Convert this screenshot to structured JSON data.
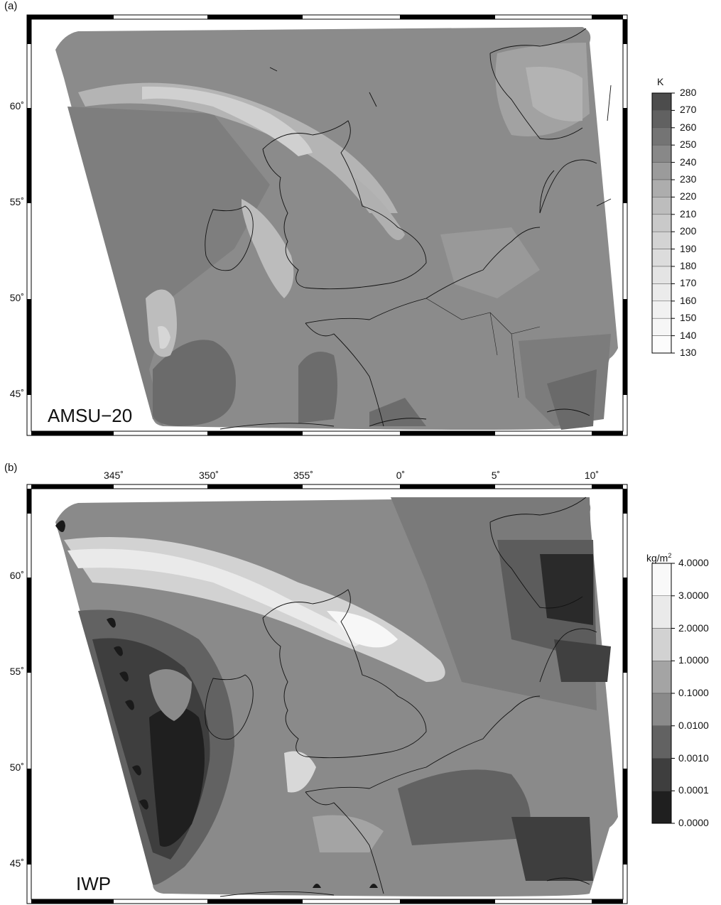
{
  "panels": [
    {
      "id": "a",
      "label": "(a)",
      "title": "AMSU−20",
      "lat_labels": [
        "60˚",
        "55˚",
        "50˚",
        "45˚"
      ],
      "lon_labels": [],
      "colorbar": {
        "unit": "K",
        "ticks": [
          "280",
          "270",
          "260",
          "250",
          "240",
          "230",
          "220",
          "210",
          "200",
          "190",
          "180",
          "170",
          "160",
          "150",
          "140",
          "130"
        ],
        "colors": [
          "#4c4c4c",
          "#616161",
          "#747474",
          "#888888",
          "#9b9b9b",
          "#adadad",
          "#bdbdbd",
          "#c9c9c9",
          "#d3d3d3",
          "#dcdcdc",
          "#e4e4e4",
          "#ebebeb",
          "#f1f1f1",
          "#f6f6f6",
          "#fcfcfc"
        ]
      }
    },
    {
      "id": "b",
      "label": "(b)",
      "title": "IWP",
      "lat_labels": [
        "60˚",
        "55˚",
        "50˚",
        "45˚"
      ],
      "lon_labels": [
        "345˚",
        "350˚",
        "355˚",
        "0˚",
        "5˚",
        "10˚"
      ],
      "colorbar": {
        "unit_base": "kg/m",
        "unit_exp": "2",
        "ticks": [
          "4.0000",
          "3.0000",
          "2.0000",
          "1.0000",
          "0.1000",
          "0.0100",
          "0.0010",
          "0.0001",
          "0.0000"
        ],
        "colors": [
          "#f9f9f9",
          "#eaeaea",
          "#d2d2d2",
          "#a4a4a4",
          "#8a8a8a",
          "#626262",
          "#3e3e3e",
          "#1f1f1f"
        ]
      }
    }
  ]
}
